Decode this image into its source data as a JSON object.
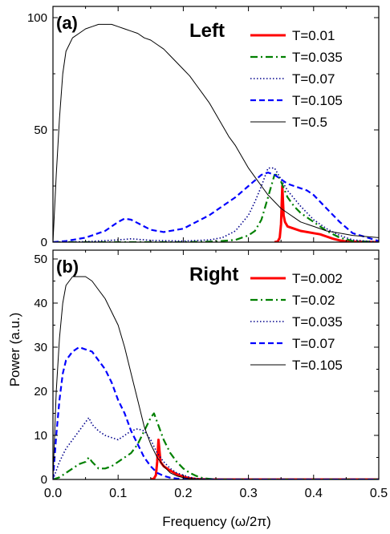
{
  "figure": {
    "xlabel": "Frequency (ω/2π)",
    "ylabel": "Power (a.u.)"
  },
  "chart_data": [
    {
      "type": "line",
      "panel_label": "(a)",
      "panel_title": "Left",
      "xlim": [
        0,
        0.5
      ],
      "ylim": [
        0,
        105
      ],
      "x_ticks": [
        0.0,
        0.1,
        0.2,
        0.3,
        0.4,
        0.5
      ],
      "x_tick_labels": [
        "0.0",
        "0.1",
        "0.2",
        "0.3",
        "0.4",
        "0.5"
      ],
      "y_ticks": [
        0,
        50,
        100
      ],
      "y_tick_labels": [
        "0",
        "50",
        "100"
      ],
      "grid": false,
      "legend_position": "top-right",
      "series": [
        {
          "name": "T=0.01",
          "color": "#ff0000",
          "style": "solid-thick",
          "x": [
            0.34,
            0.345,
            0.348,
            0.35,
            0.352,
            0.354,
            0.356,
            0.36,
            0.37,
            0.38,
            0.39,
            0.4,
            0.41,
            0.42,
            0.43,
            0.44,
            0.45,
            0.5
          ],
          "y": [
            0,
            0.3,
            2,
            8,
            25,
            12,
            9,
            7,
            6,
            5,
            4.5,
            4,
            3.5,
            2.5,
            1.5,
            0.8,
            0.3,
            0
          ]
        },
        {
          "name": "T=0.035",
          "color": "#008000",
          "style": "dash-dot",
          "x": [
            0.0,
            0.2,
            0.25,
            0.28,
            0.3,
            0.31,
            0.32,
            0.33,
            0.34,
            0.345,
            0.35,
            0.36,
            0.37,
            0.38,
            0.39,
            0.4,
            0.42,
            0.44,
            0.46,
            0.5
          ],
          "y": [
            0,
            0,
            0.3,
            1,
            3,
            5,
            10,
            20,
            30,
            30,
            27,
            20,
            16,
            13,
            11,
            9,
            5,
            2,
            0.5,
            0
          ]
        },
        {
          "name": "T=0.07",
          "color": "#00008b",
          "style": "dotted",
          "x": [
            0.0,
            0.05,
            0.1,
            0.12,
            0.15,
            0.2,
            0.24,
            0.26,
            0.28,
            0.3,
            0.31,
            0.32,
            0.33,
            0.34,
            0.35,
            0.36,
            0.38,
            0.4,
            0.42,
            0.44,
            0.46,
            0.5
          ],
          "y": [
            0,
            0.2,
            1,
            1.5,
            0.8,
            0.5,
            1,
            2,
            5,
            12,
            18,
            25,
            33,
            33,
            28,
            23,
            16,
            10,
            6,
            3,
            1,
            0
          ]
        },
        {
          "name": "T=0.105",
          "color": "#0000ff",
          "style": "dashed",
          "x": [
            0.0,
            0.02,
            0.05,
            0.08,
            0.1,
            0.11,
            0.12,
            0.13,
            0.15,
            0.17,
            0.2,
            0.22,
            0.24,
            0.26,
            0.28,
            0.3,
            0.32,
            0.33,
            0.34,
            0.35,
            0.36,
            0.37,
            0.38,
            0.39,
            0.4,
            0.42,
            0.44,
            0.46,
            0.5
          ],
          "y": [
            0,
            0.5,
            2,
            5,
            9,
            10.5,
            10,
            8.5,
            5.5,
            4.5,
            6,
            9,
            12,
            16,
            20,
            25,
            30,
            31,
            30,
            28,
            26,
            25,
            24,
            23,
            21,
            15,
            9,
            4,
            0.5
          ]
        },
        {
          "name": "T=0.5",
          "color": "#000000",
          "style": "solid-thin",
          "x": [
            0.0,
            0.005,
            0.01,
            0.015,
            0.02,
            0.025,
            0.03,
            0.04,
            0.05,
            0.06,
            0.07,
            0.08,
            0.09,
            0.1,
            0.11,
            0.12,
            0.13,
            0.14,
            0.15,
            0.16,
            0.17,
            0.18,
            0.19,
            0.2,
            0.21,
            0.22,
            0.23,
            0.24,
            0.25,
            0.26,
            0.27,
            0.28,
            0.29,
            0.3,
            0.31,
            0.32,
            0.33,
            0.34,
            0.35,
            0.36,
            0.37,
            0.38,
            0.39,
            0.4,
            0.42,
            0.44,
            0.46,
            0.48,
            0.5
          ],
          "y": [
            0,
            30,
            55,
            75,
            85,
            88,
            91,
            93,
            95,
            96,
            97,
            97,
            97,
            96,
            95,
            94,
            93,
            91,
            90,
            88,
            86,
            83,
            80,
            77,
            74,
            70,
            66,
            62,
            57,
            52,
            47,
            43,
            38,
            33,
            29,
            25,
            21,
            18,
            15,
            13,
            11,
            9,
            8,
            7,
            5,
            4,
            3,
            2.5,
            2
          ]
        }
      ]
    },
    {
      "type": "line",
      "panel_label": "(b)",
      "panel_title": "Right",
      "xlim": [
        0,
        0.5
      ],
      "ylim": [
        0,
        52
      ],
      "x_ticks": [
        0.0,
        0.1,
        0.2,
        0.3,
        0.4,
        0.5
      ],
      "x_tick_labels": [
        "0.0",
        "0.1",
        "0.2",
        "0.3",
        "0.4",
        "0.5"
      ],
      "y_ticks": [
        0,
        10,
        20,
        30,
        40,
        50
      ],
      "y_tick_labels": [
        "0",
        "10",
        "20",
        "30",
        "40",
        "50"
      ],
      "grid": false,
      "legend_position": "top-right",
      "series": [
        {
          "name": "T=0.002",
          "color": "#ff0000",
          "style": "solid-thick",
          "x": [
            0.15,
            0.155,
            0.158,
            0.16,
            0.162,
            0.165,
            0.17,
            0.175,
            0.18,
            0.19,
            0.2,
            0.21,
            0.22,
            0.25,
            0.5
          ],
          "y": [
            0,
            0.2,
            1,
            4,
            9,
            4,
            3,
            2.5,
            2,
            1.2,
            0.6,
            0.3,
            0.1,
            0,
            0
          ]
        },
        {
          "name": "T=0.02",
          "color": "#008000",
          "style": "dash-dot",
          "x": [
            0.0,
            0.01,
            0.02,
            0.03,
            0.04,
            0.05,
            0.055,
            0.06,
            0.07,
            0.08,
            0.09,
            0.1,
            0.11,
            0.12,
            0.13,
            0.14,
            0.15,
            0.155,
            0.16,
            0.17,
            0.18,
            0.19,
            0.2,
            0.21,
            0.22,
            0.23,
            0.25,
            0.5
          ],
          "y": [
            0,
            0.5,
            1.5,
            2.5,
            3.5,
            4,
            5,
            4,
            2.5,
            2.5,
            3,
            4,
            5,
            6,
            8,
            11,
            14,
            15,
            13,
            9,
            6,
            4,
            2.5,
            1.5,
            0.8,
            0.3,
            0,
            0
          ]
        },
        {
          "name": "T=0.035",
          "color": "#00008b",
          "style": "dotted",
          "x": [
            0.0,
            0.01,
            0.02,
            0.03,
            0.04,
            0.05,
            0.055,
            0.06,
            0.07,
            0.08,
            0.09,
            0.1,
            0.11,
            0.12,
            0.13,
            0.14,
            0.15,
            0.16,
            0.17,
            0.18,
            0.19,
            0.2,
            0.21,
            0.22,
            0.25,
            0.5
          ],
          "y": [
            0,
            4,
            7,
            9,
            11,
            13,
            14,
            12.5,
            11,
            10,
            9.5,
            9,
            10,
            11,
            11.5,
            11,
            9,
            6,
            4,
            2.5,
            1.5,
            1,
            0.5,
            0.2,
            0,
            0
          ]
        },
        {
          "name": "T=0.07",
          "color": "#0000ff",
          "style": "dashed",
          "x": [
            0.0,
            0.005,
            0.01,
            0.015,
            0.02,
            0.03,
            0.04,
            0.05,
            0.06,
            0.07,
            0.08,
            0.09,
            0.1,
            0.11,
            0.12,
            0.13,
            0.14,
            0.15,
            0.16,
            0.17,
            0.18,
            0.19,
            0.2,
            0.22,
            0.25,
            0.5
          ],
          "y": [
            0,
            10,
            18,
            24,
            27,
            29,
            30,
            29.5,
            29,
            27,
            25,
            22,
            18,
            15,
            11,
            8,
            5,
            3,
            1.5,
            0.8,
            0.4,
            0.2,
            0.1,
            0,
            0,
            0
          ]
        },
        {
          "name": "T=0.105",
          "color": "#000000",
          "style": "solid-thin",
          "x": [
            0.0,
            0.005,
            0.01,
            0.015,
            0.02,
            0.025,
            0.03,
            0.04,
            0.05,
            0.06,
            0.07,
            0.08,
            0.09,
            0.1,
            0.11,
            0.12,
            0.13,
            0.14,
            0.15,
            0.16,
            0.17,
            0.18,
            0.19,
            0.2,
            0.21,
            0.22,
            0.25,
            0.3,
            0.5
          ],
          "y": [
            0,
            20,
            32,
            40,
            44,
            45,
            46,
            46,
            46,
            45,
            43,
            41,
            38,
            35,
            30,
            24,
            18,
            12,
            8,
            5,
            3,
            1.5,
            0.8,
            0.4,
            0.2,
            0.1,
            0,
            0,
            0
          ]
        }
      ]
    }
  ]
}
